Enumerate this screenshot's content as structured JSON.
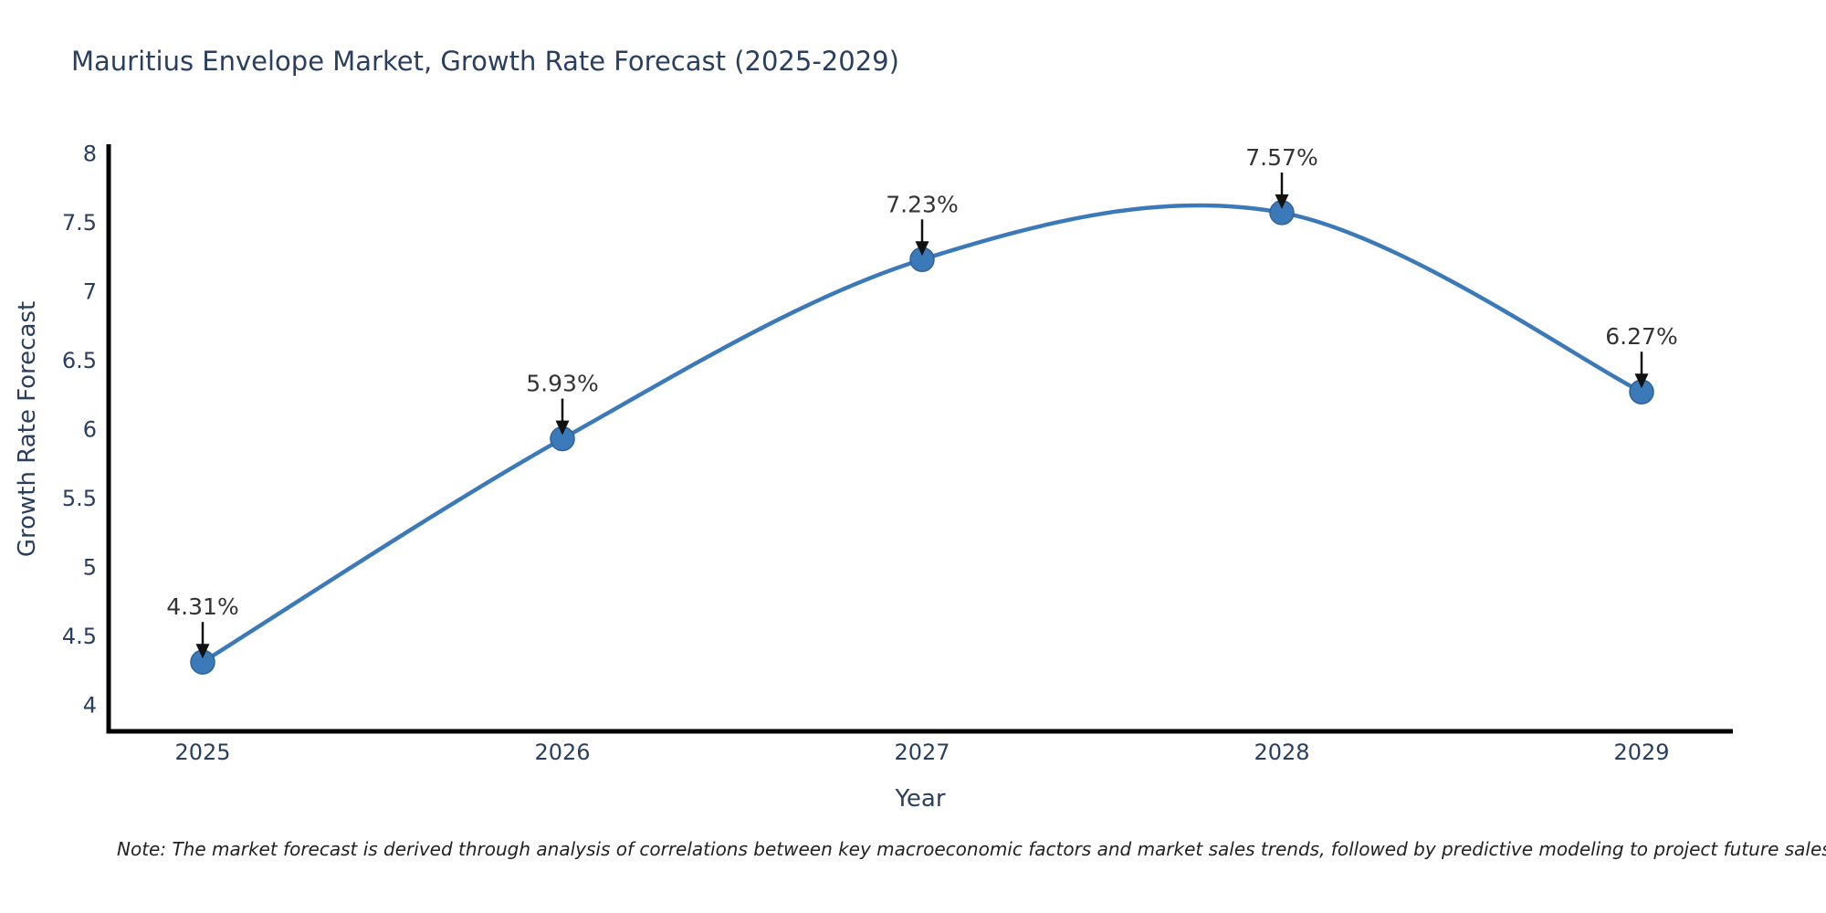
{
  "chart_data": {
    "type": "line",
    "title": "Mauritius Envelope Market, Growth Rate Forecast (2025-2029)",
    "xlabel": "Year",
    "ylabel": "Growth Rate Forecast",
    "x": [
      2025,
      2026,
      2027,
      2028,
      2029
    ],
    "x_tick_labels": [
      "2025",
      "2026",
      "2027",
      "2028",
      "2029"
    ],
    "values": [
      4.31,
      5.93,
      7.23,
      7.57,
      6.27
    ],
    "point_labels": [
      "4.31%",
      "5.93%",
      "7.23%",
      "7.57%",
      "6.27%"
    ],
    "y_tick_values": [
      4,
      4.5,
      5,
      5.5,
      6,
      6.5,
      7,
      7.5,
      8
    ],
    "y_tick_labels": [
      "4",
      "4.5",
      "5",
      "5.5",
      "6",
      "6.5",
      "7",
      "7.5",
      "8"
    ],
    "ylim": [
      3.81,
      8.07
    ],
    "line_shape": "spline",
    "grid": false,
    "legend_position": "none",
    "colors": {
      "line": "#3c79b8",
      "marker": "#3c79b8",
      "marker_edge": "#2f6399",
      "axis": "#000000",
      "tick_text": "#2a3f5f",
      "annotation_text": "#333333",
      "annotation_arrow": "#111111"
    }
  },
  "note": "Note: The market forecast is derived through analysis of correlations between key macroeconomic factors and market sales trends, followed by predictive modeling to project future sales"
}
